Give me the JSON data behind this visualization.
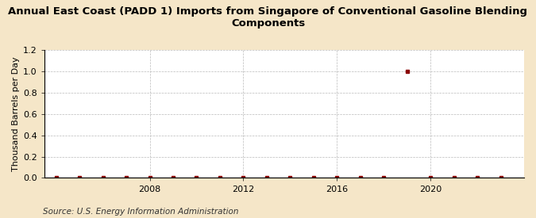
{
  "title_line1": "Annual East Coast (PADD 1) Imports from Singapore of Conventional Gasoline Blending",
  "title_line2": "Components",
  "ylabel": "Thousand Barrels per Day",
  "source": "Source: U.S. Energy Information Administration",
  "background_color": "#f5e6c8",
  "plot_background_color": "#ffffff",
  "data_x": [
    2004,
    2005,
    2006,
    2007,
    2008,
    2009,
    2010,
    2011,
    2012,
    2013,
    2014,
    2015,
    2016,
    2017,
    2018,
    2019,
    2020,
    2021,
    2022,
    2023
  ],
  "data_y": [
    0.0,
    0.0,
    0.0,
    0.0,
    0.0,
    0.0,
    0.0,
    0.0,
    0.0,
    0.0,
    0.0,
    0.0,
    0.0,
    0.0,
    0.0,
    1.0,
    0.0,
    0.0,
    0.0,
    0.0
  ],
  "marker_color": "#8b0000",
  "ylim": [
    0.0,
    1.2
  ],
  "yticks": [
    0.0,
    0.2,
    0.4,
    0.6,
    0.8,
    1.0,
    1.2
  ],
  "xtick_positions": [
    2008,
    2012,
    2016,
    2020
  ],
  "xmin": 2003.5,
  "xmax": 2024,
  "grid_color": "#bbbbbb",
  "title_fontsize": 9.5,
  "axis_fontsize": 8,
  "tick_fontsize": 8,
  "source_fontsize": 7.5
}
